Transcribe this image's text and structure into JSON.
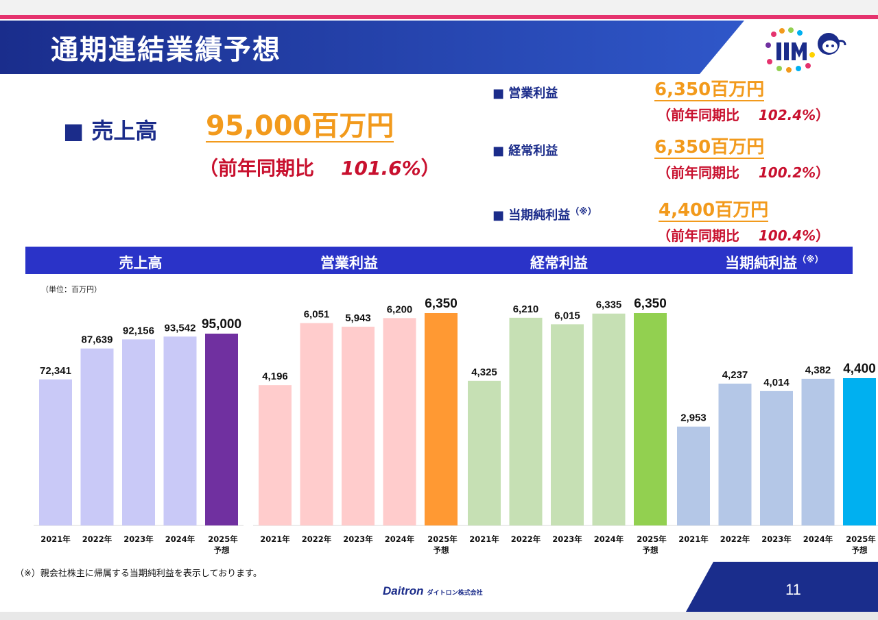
{
  "header": {
    "title": "通期連結業績予想"
  },
  "headline": {
    "sales": {
      "label": "売上高",
      "value": "95,000百万円",
      "yoy_prefix": "（前年同期比",
      "yoy_pct": "101.6%",
      "yoy_suffix": "）"
    },
    "kpis": [
      {
        "label": "営業利益",
        "value": "6,350百万円",
        "yoy_prefix": "（前年同期比",
        "yoy_pct": "102.4%",
        "yoy_suffix": "）",
        "note": ""
      },
      {
        "label": "経常利益",
        "value": "6,350百万円",
        "yoy_prefix": "（前年同期比",
        "yoy_pct": "100.2%",
        "yoy_suffix": "）",
        "note": ""
      },
      {
        "label": "当期純利益",
        "value": "4,400百万円",
        "yoy_prefix": "（前年同期比",
        "yoy_pct": "100.4%",
        "yoy_suffix": "）",
        "note": "（※）"
      }
    ]
  },
  "unit_label": "（単位：百万円）",
  "chart_headers": [
    "売上高",
    "営業利益",
    "経常利益",
    "当期純利益"
  ],
  "chart_header_note": "（※）",
  "footnote": "（※）親会社株主に帰属する当期純利益を表示しております。",
  "footer": {
    "brand": "Daitron",
    "brand_sub": "ダイトロン株式会社",
    "page_number": "11"
  },
  "colors": {
    "accent_blue": "#2a33c8",
    "title_navy": "#1b2c8a",
    "value_orange": "#f29a1c",
    "yoy_red": "#c8102e",
    "pink": "#e5336e"
  },
  "chart_data": [
    {
      "type": "bar",
      "title": "売上高",
      "categories": [
        "2021年",
        "2022年",
        "2023年",
        "2024年",
        "2025年\n予想"
      ],
      "values": [
        72341,
        87639,
        92156,
        93542,
        95000
      ],
      "value_labels": [
        "72,341",
        "87,639",
        "92,156",
        "93,542",
        "95,000"
      ],
      "colors": [
        "#c9c9f7",
        "#c9c9f7",
        "#c9c9f7",
        "#c9c9f7",
        "#7030a0"
      ]
    },
    {
      "type": "bar",
      "title": "営業利益",
      "categories": [
        "2021年",
        "2022年",
        "2023年",
        "2024年",
        "2025年\n予想"
      ],
      "values": [
        4196,
        6051,
        5943,
        6200,
        6350
      ],
      "value_labels": [
        "4,196",
        "6,051",
        "5,943",
        "6,200",
        "6,350"
      ],
      "colors": [
        "#ffcccc",
        "#ffcccc",
        "#ffcccc",
        "#ffcccc",
        "#ff9933"
      ]
    },
    {
      "type": "bar",
      "title": "経常利益",
      "categories": [
        "2021年",
        "2022年",
        "2023年",
        "2024年",
        "2025年\n予想"
      ],
      "values": [
        4325,
        6210,
        6015,
        6335,
        6350
      ],
      "value_labels": [
        "4,325",
        "6,210",
        "6,015",
        "6,335",
        "6,350"
      ],
      "colors": [
        "#c6e0b4",
        "#c6e0b4",
        "#c6e0b4",
        "#c6e0b4",
        "#92d050"
      ]
    },
    {
      "type": "bar",
      "title": "当期純利益",
      "categories": [
        "2021年",
        "2022年",
        "2023年",
        "2024年",
        "2025年\n予想"
      ],
      "values": [
        2953,
        4237,
        4014,
        4382,
        4400
      ],
      "value_labels": [
        "2,953",
        "4,237",
        "4,014",
        "4,382",
        "4,400"
      ],
      "colors": [
        "#b4c7e7",
        "#b4c7e7",
        "#b4c7e7",
        "#b4c7e7",
        "#00b0f0"
      ]
    }
  ]
}
